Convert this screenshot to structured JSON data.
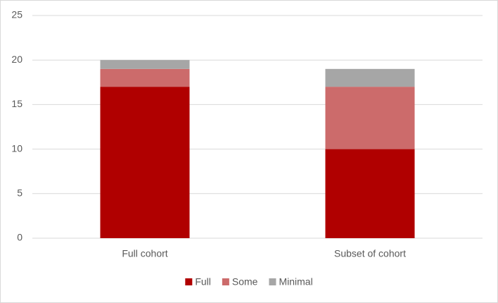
{
  "chart_data": {
    "type": "stacked_bar",
    "categories": [
      "Full cohort",
      "Subset of cohort"
    ],
    "series": [
      {
        "name": "Full",
        "color": "#b00000",
        "values": [
          17,
          10
        ]
      },
      {
        "name": "Some",
        "color": "#cc6b6b",
        "values": [
          2,
          7
        ]
      },
      {
        "name": "Minimal",
        "color": "#a6a6a6",
        "values": [
          1,
          2
        ]
      }
    ],
    "ylim": [
      0,
      25
    ],
    "yticks": [
      0,
      5,
      10,
      15,
      20,
      25
    ],
    "grid": true,
    "legend": "bottom"
  }
}
